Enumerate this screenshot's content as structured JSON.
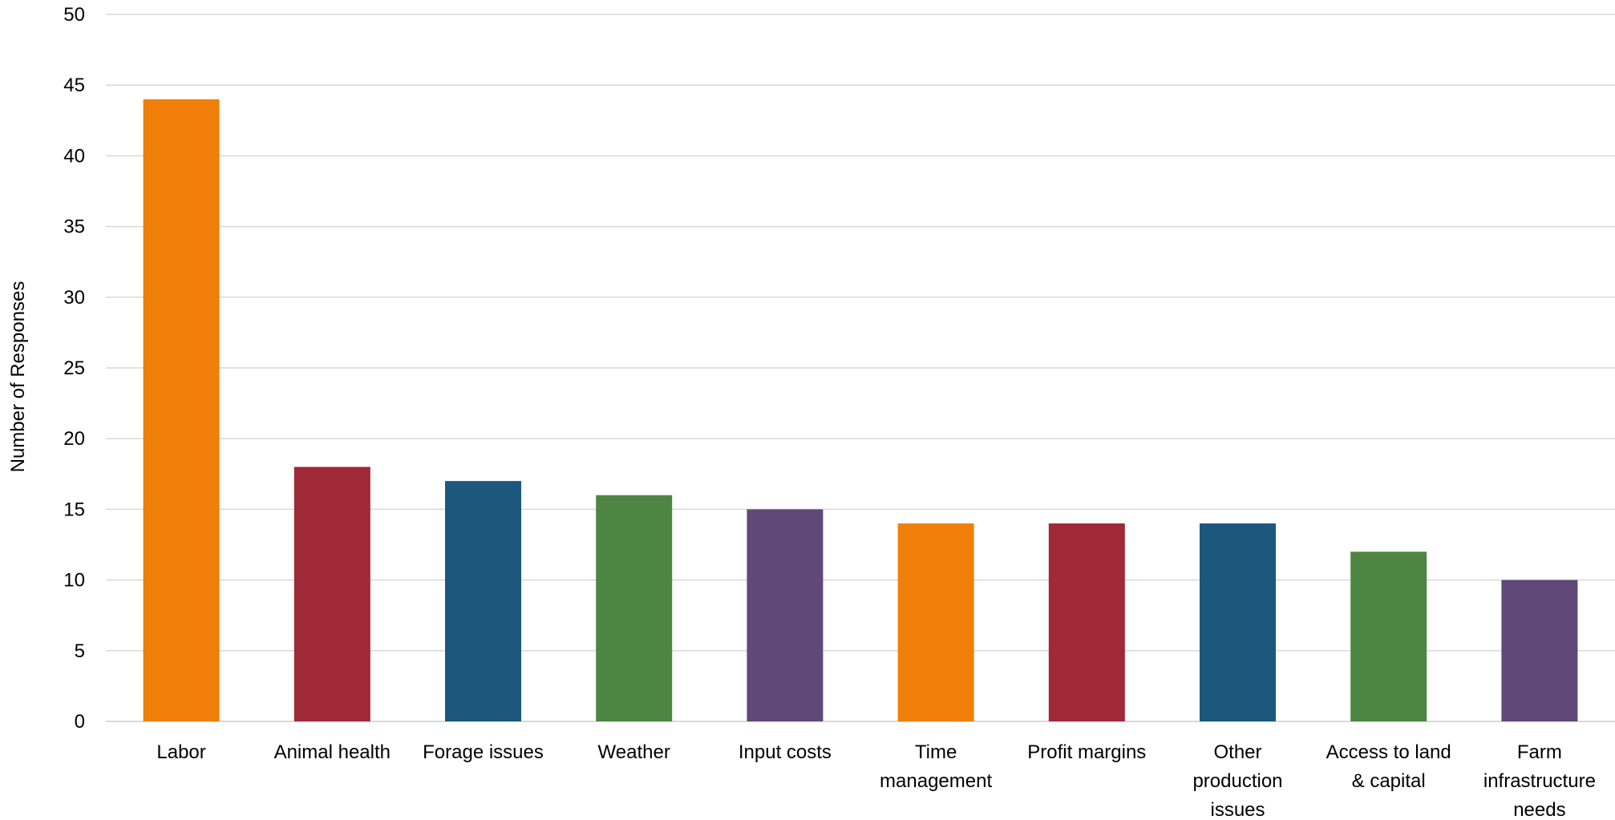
{
  "chart_data": {
    "type": "bar",
    "title": "",
    "xlabel": "",
    "ylabel": "Number of Responses",
    "ylim": [
      0,
      50
    ],
    "yticks": [
      0,
      5,
      10,
      15,
      20,
      25,
      30,
      35,
      40,
      45,
      50
    ],
    "grid": true,
    "legend": "none",
    "categories": [
      [
        "Labor"
      ],
      [
        "Animal health"
      ],
      [
        "Forage issues"
      ],
      [
        "Weather"
      ],
      [
        "Input costs"
      ],
      [
        "Time",
        "management"
      ],
      [
        "Profit margins"
      ],
      [
        "Other",
        "production",
        "issues"
      ],
      [
        "Access to land",
        "& capital"
      ],
      [
        "Farm",
        "infrastructure",
        "needs"
      ]
    ],
    "values": [
      44,
      18,
      17,
      16,
      15,
      14,
      14,
      14,
      12,
      10
    ],
    "colors": [
      "#F07F09",
      "#9F2936",
      "#1B587C",
      "#4E8542",
      "#604878",
      "#F07F09",
      "#9F2936",
      "#1B587C",
      "#4E8542",
      "#604878"
    ]
  }
}
